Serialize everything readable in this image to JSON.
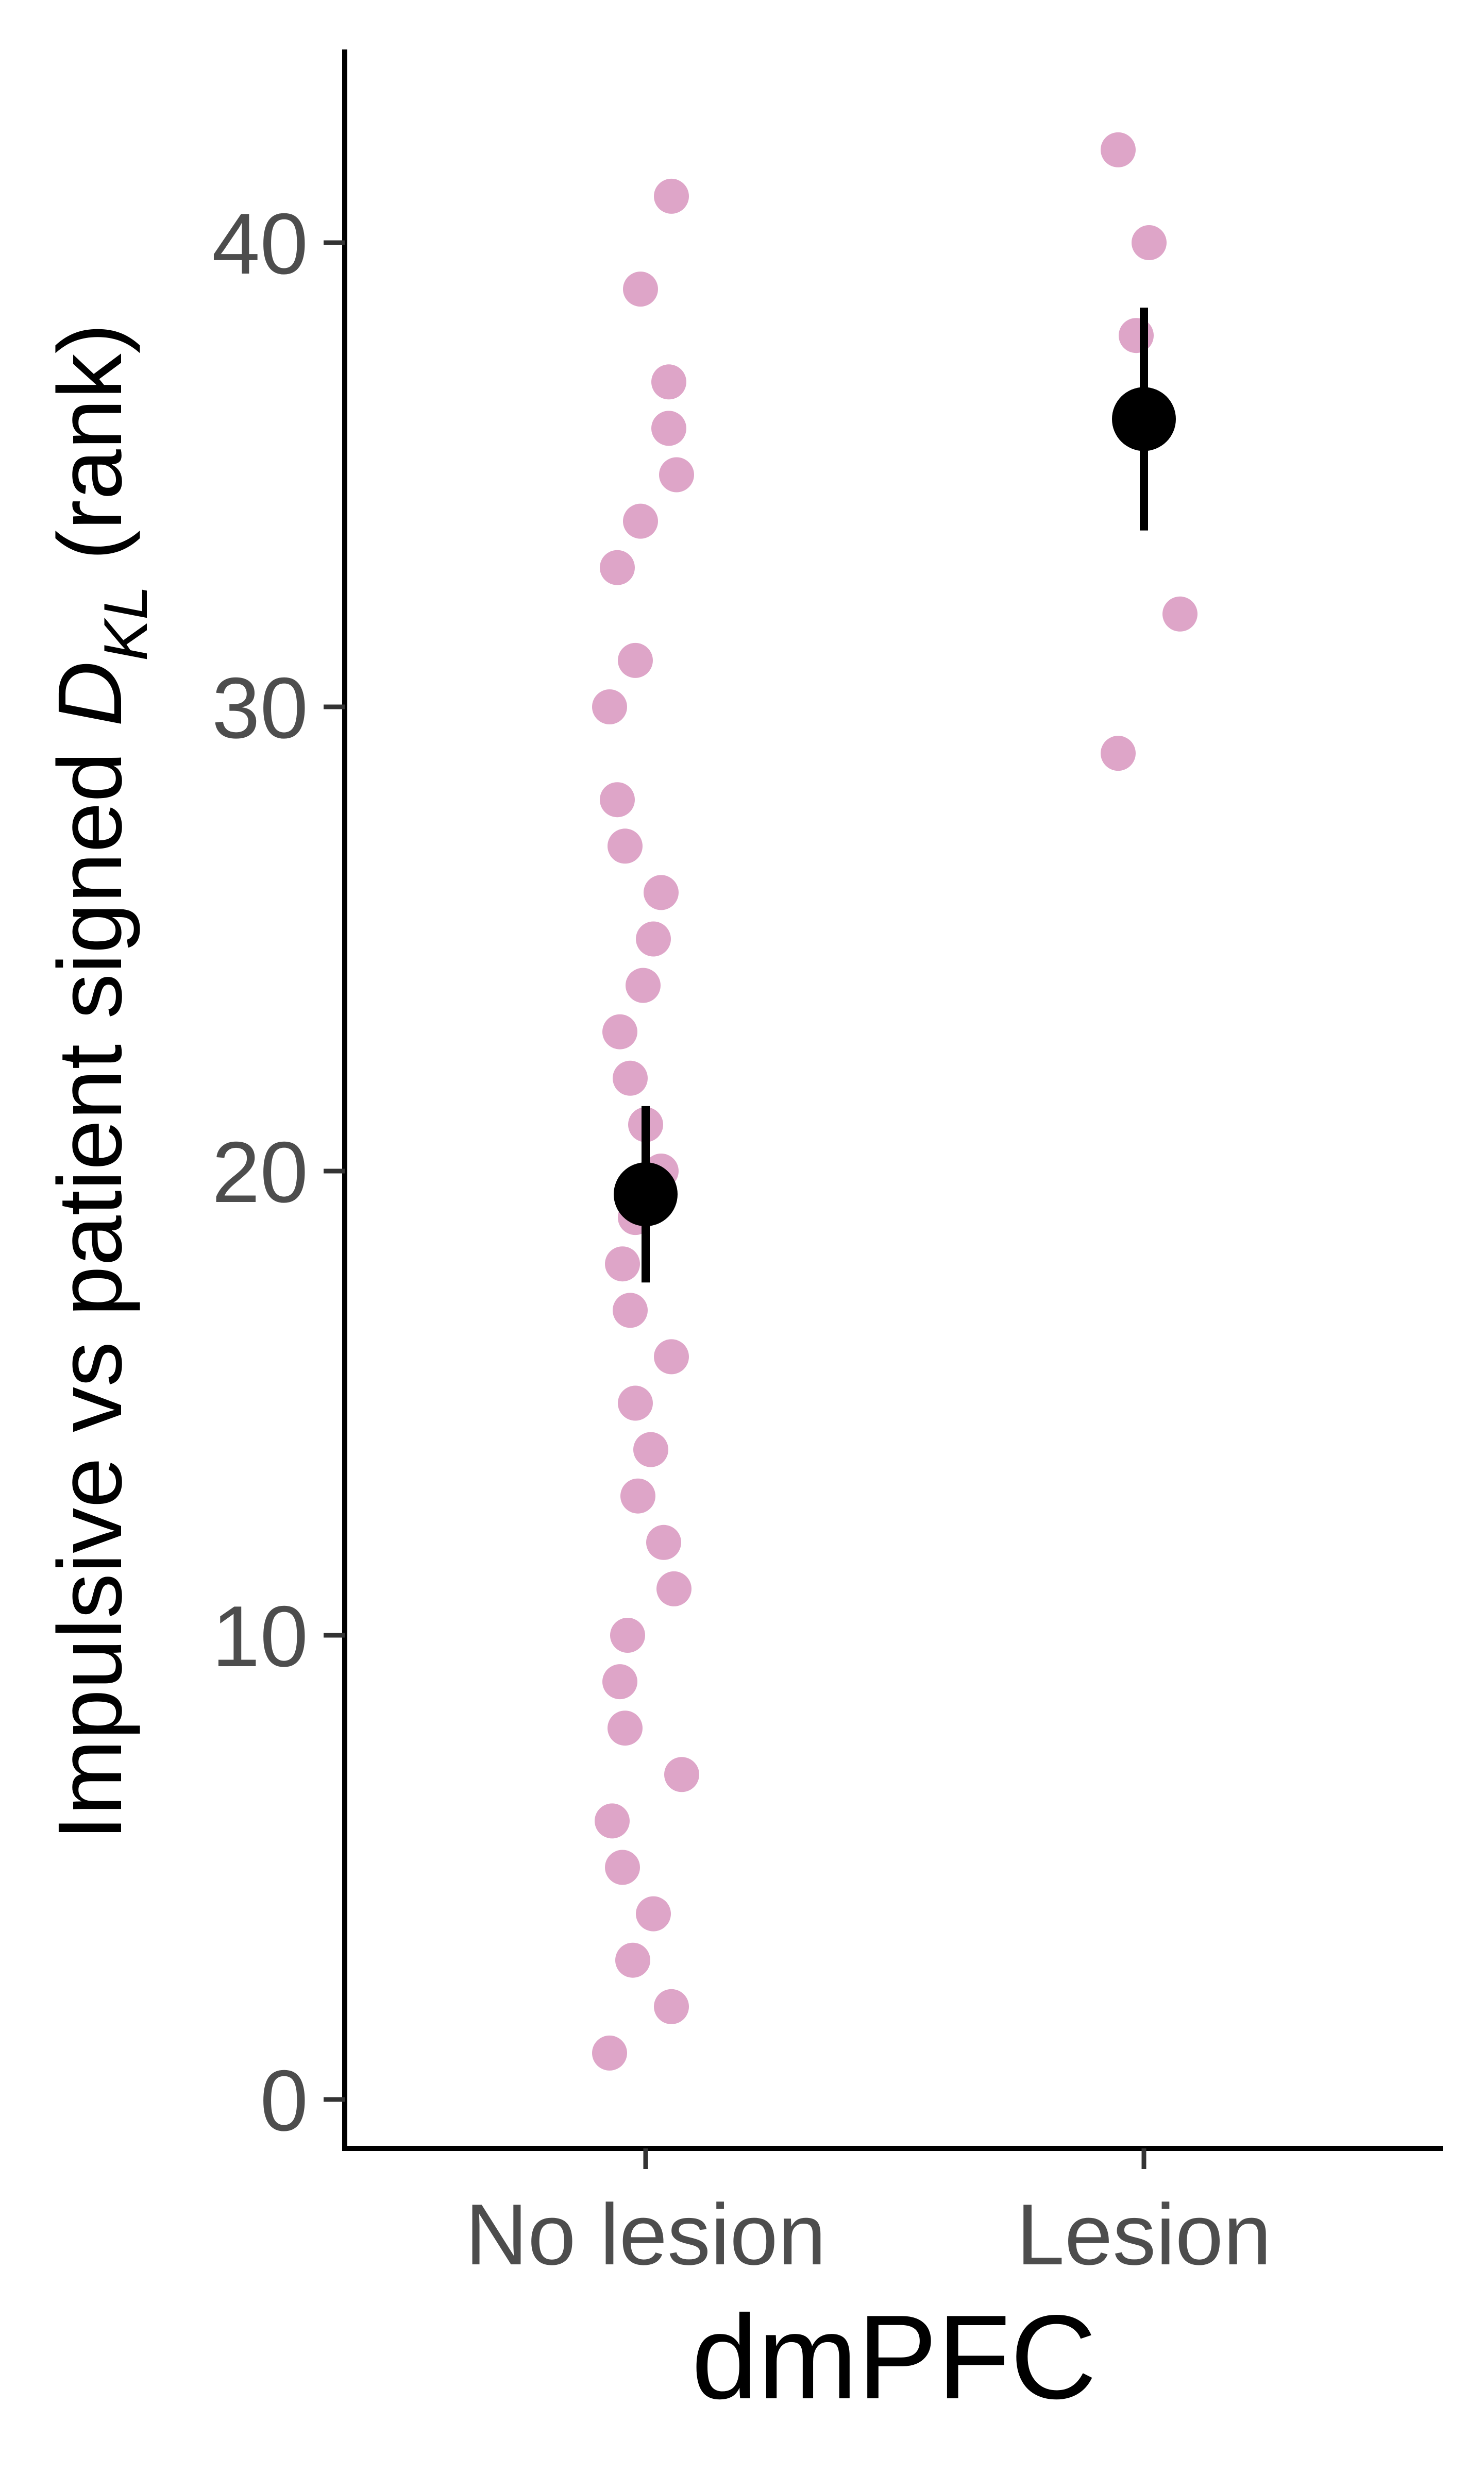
{
  "chart_data": {
    "type": "scatter",
    "xlabel": "dmPFC",
    "ylabel": {
      "prefix": "Impulsive vs patient signed ",
      "symbol": "D",
      "subscript": "KL",
      "suffix": " (rank)"
    },
    "categories": [
      "No lesion",
      "Lesion"
    ],
    "y_ticks": [
      "0",
      "10",
      "20",
      "30",
      "40"
    ],
    "ylim": [
      -1,
      44
    ],
    "grid": false,
    "colors": {
      "points": "#dea5c8",
      "summary": "#000000",
      "axis": "#000000"
    },
    "series": [
      {
        "category": "No lesion",
        "points": [
          1,
          2,
          3,
          4,
          5,
          6,
          7,
          8,
          9,
          10,
          11,
          12,
          13,
          14,
          15,
          16,
          17,
          18,
          19,
          20,
          21,
          22,
          23,
          24,
          25,
          26,
          27,
          28,
          30,
          31,
          33,
          34,
          35,
          36,
          37,
          39,
          41
        ],
        "mean": 19.5,
        "error": [
          17.6,
          21.4
        ]
      },
      {
        "category": "Lesion",
        "points": [
          29,
          32,
          38,
          40,
          42
        ],
        "mean": 36.2,
        "error": [
          33.8,
          38.6
        ]
      }
    ]
  }
}
